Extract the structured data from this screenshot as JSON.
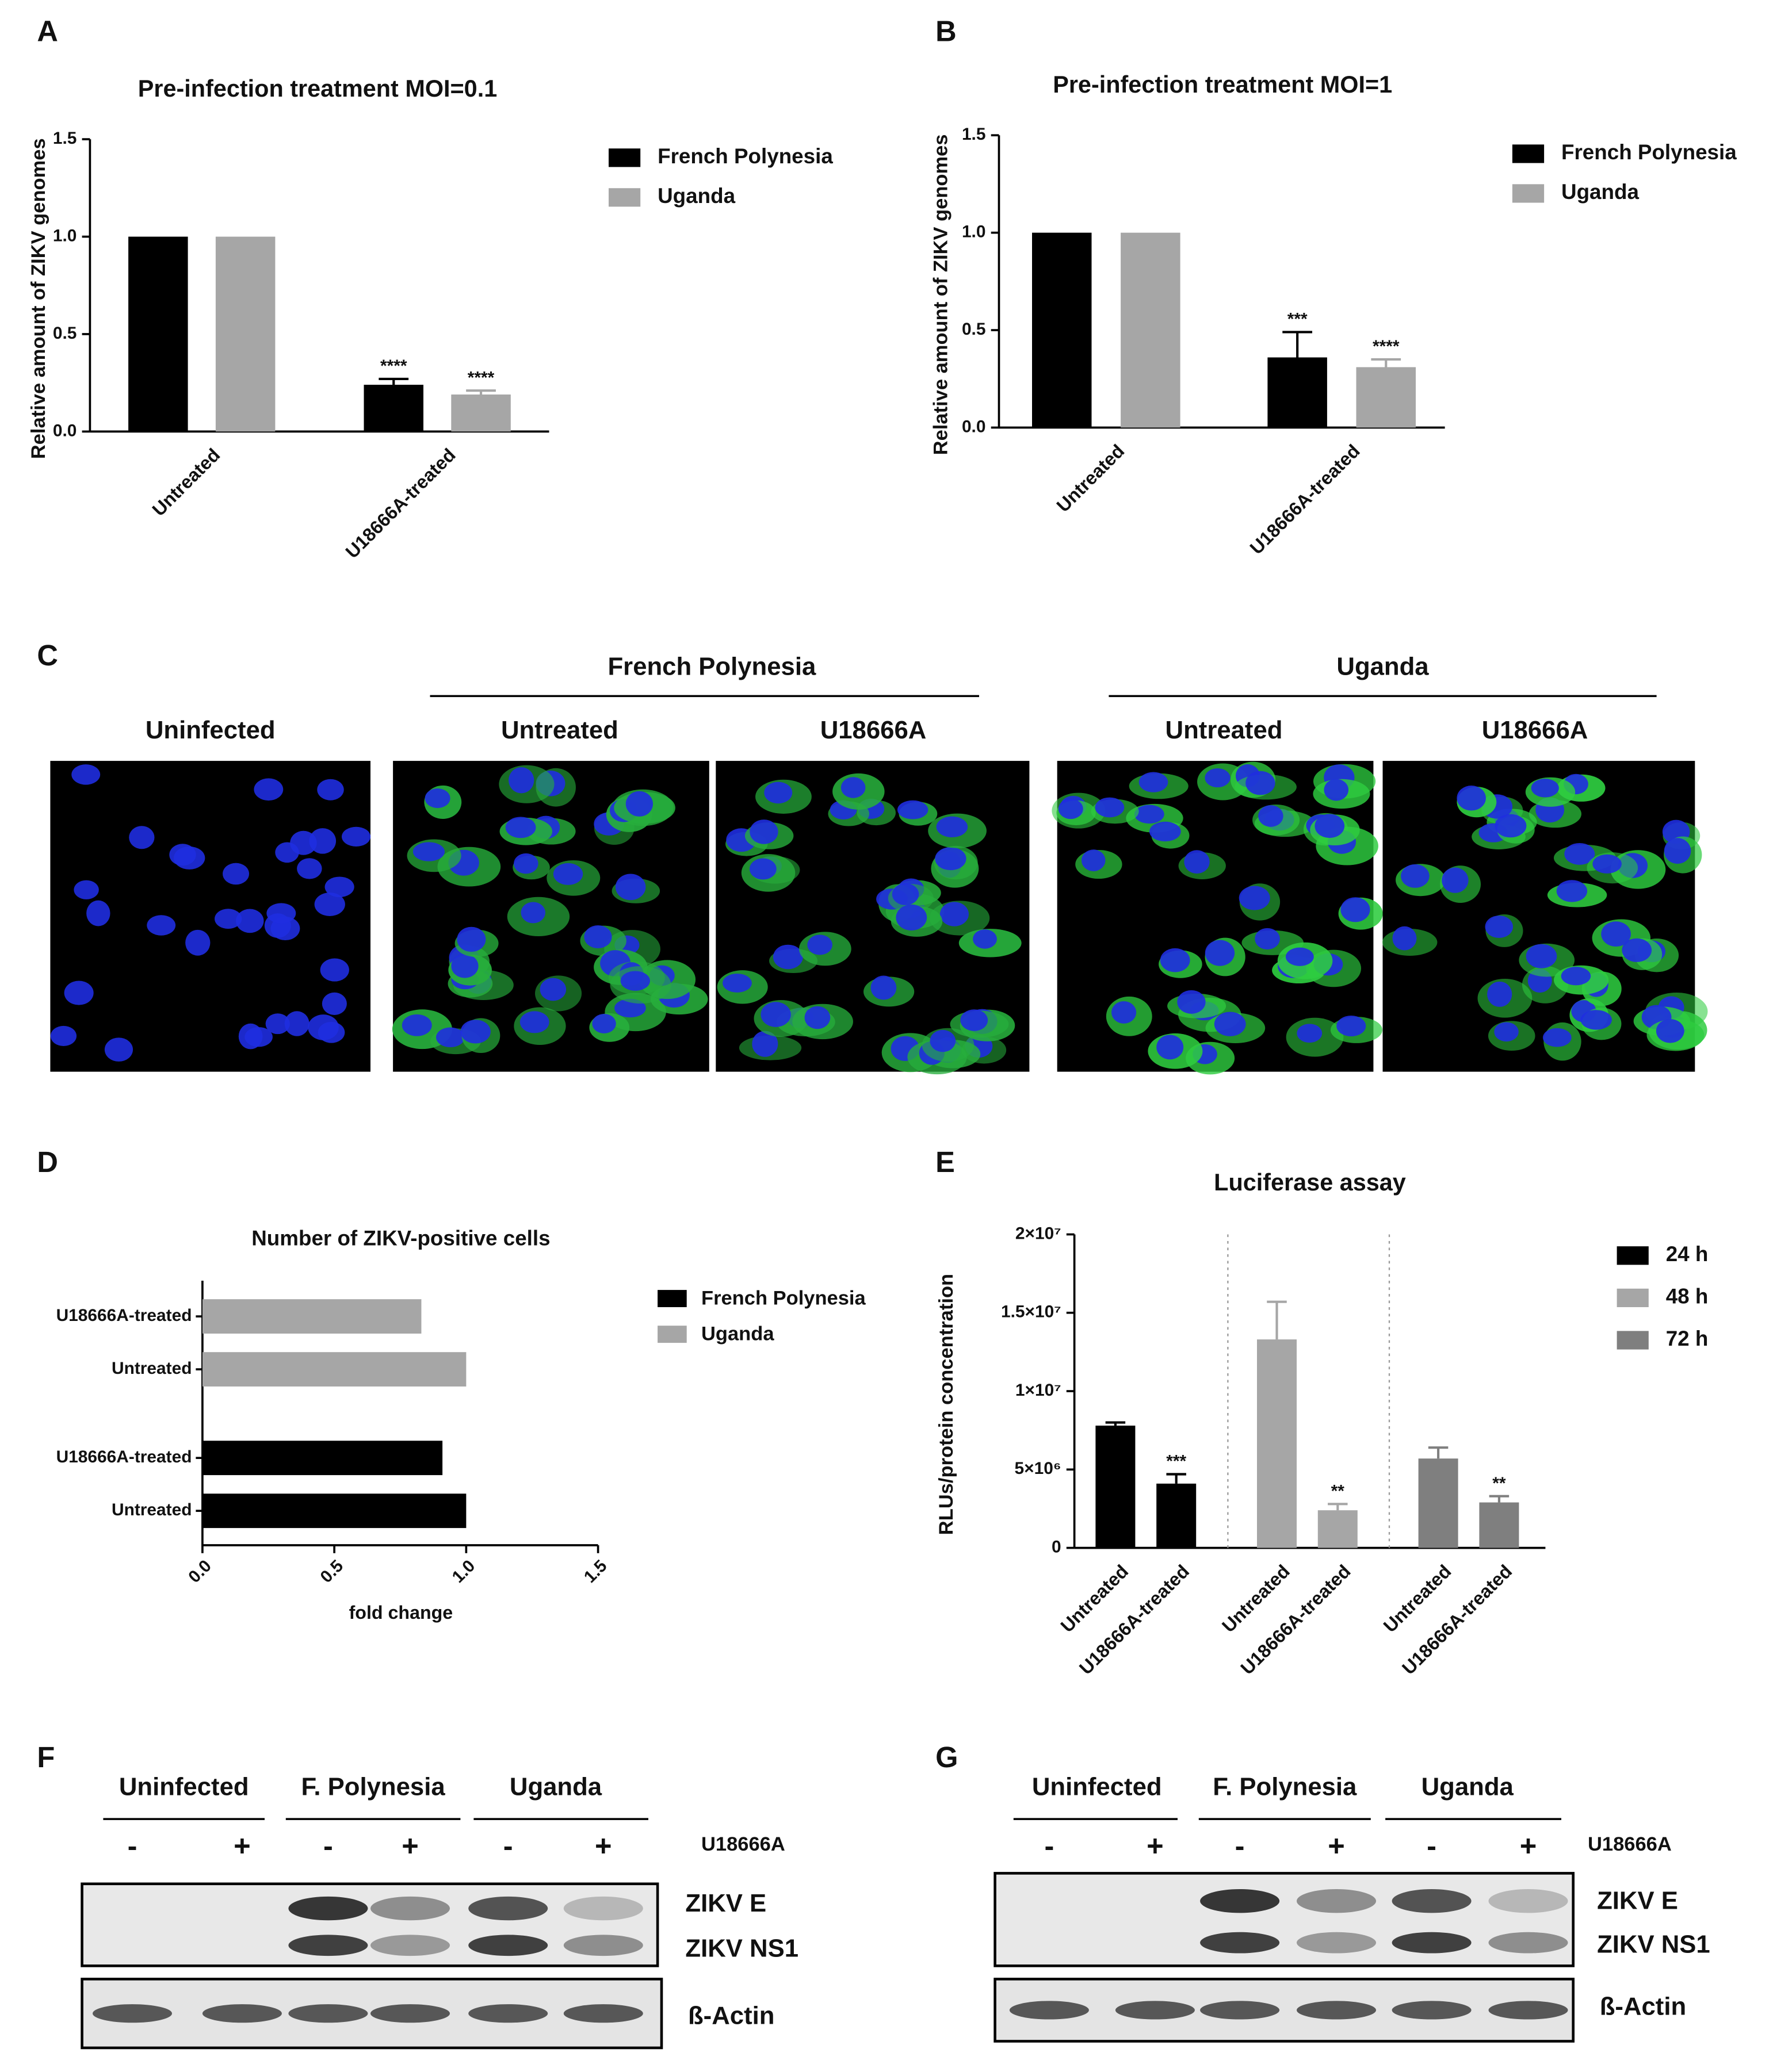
{
  "chart_data": [
    {
      "panel": "A",
      "type": "bar",
      "title": "Pre-infection treatment MOI=0.1",
      "ylabel": "Relative amount of ZIKV genomes",
      "categories": [
        "Untreated",
        "U18666A-treated"
      ],
      "series": [
        {
          "name": "French Polynesia",
          "color": "#000000",
          "values": [
            1,
            0.24
          ],
          "errors": [
            null,
            0.03
          ],
          "significance": [
            null,
            "****"
          ]
        },
        {
          "name": "Uganda",
          "color": "#a6a6a6",
          "values": [
            1,
            0.19
          ],
          "errors": [
            null,
            0.02
          ],
          "significance": [
            null,
            "****"
          ]
        }
      ],
      "ylim": [
        0,
        1.5
      ],
      "yticks": [
        {
          "value": 0,
          "label": "0.0"
        },
        0.5,
        {
          "value": 1,
          "label": "1.0"
        },
        1.5
      ]
    },
    {
      "panel": "B",
      "type": "bar",
      "title": "Pre-infection treatment MOI=1",
      "ylabel": "Relative amount of ZIKV genomes",
      "categories": [
        "Untreated",
        "U18666A-treated"
      ],
      "series": [
        {
          "name": "French Polynesia",
          "color": "#000000",
          "values": [
            1,
            0.36
          ],
          "errors": [
            null,
            0.13
          ],
          "significance": [
            null,
            "***"
          ]
        },
        {
          "name": "Uganda",
          "color": "#a6a6a6",
          "values": [
            1,
            0.31
          ],
          "errors": [
            null,
            0.04
          ],
          "significance": [
            null,
            "****"
          ]
        }
      ],
      "ylim": [
        0,
        1.5
      ],
      "yticks": [
        {
          "value": 0,
          "label": "0.0"
        },
        0.5,
        {
          "value": 1,
          "label": "1.0"
        },
        1.5
      ]
    },
    {
      "panel": "D",
      "type": "barh",
      "title": "Number of ZIKV-positive cells",
      "xlabel": "fold change",
      "categories": [
        "Untreated",
        "U18666A-treated"
      ],
      "series": [
        {
          "name": "French Polynesia",
          "color": "#000000",
          "values": [
            1,
            0.91
          ]
        },
        {
          "name": "Uganda",
          "color": "#a6a6a6",
          "values": [
            1,
            0.83
          ]
        }
      ],
      "xlim": [
        0,
        1.5
      ],
      "xticks": [
        {
          "value": 0,
          "label": "0.0"
        },
        0.5,
        {
          "value": 1,
          "label": "1.0"
        },
        1.5
      ]
    },
    {
      "panel": "E",
      "type": "bar",
      "title": "Luciferase assay",
      "ylabel": "RLUs/protein concentration",
      "categories": [
        "Untreated",
        "U18666A-treated"
      ],
      "series": [
        {
          "name": "24 h",
          "color": "#000000",
          "values": [
            7800000,
            4100000
          ],
          "errors": [
            200000,
            600000
          ],
          "significance": [
            null,
            "***"
          ]
        },
        {
          "name": "48 h",
          "color": "#a6a6a6",
          "values": [
            13300000,
            2400000
          ],
          "errors": [
            2400000,
            400000
          ],
          "significance": [
            null,
            "**"
          ]
        },
        {
          "name": "72 h",
          "color": "#7f7f7f",
          "values": [
            5700000,
            2900000
          ],
          "errors": [
            700000,
            400000
          ],
          "significance": [
            null,
            "**"
          ]
        }
      ],
      "ylim": [
        0,
        20000000
      ],
      "yticks": [
        0,
        {
          "value": 5000000,
          "label": "5×10⁶"
        },
        {
          "value": 10000000,
          "label": "1×10⁷"
        },
        {
          "value": 15000000,
          "label": "1.5×10⁷"
        },
        {
          "value": 20000000,
          "label": "2×10⁷"
        }
      ]
    }
  ],
  "panel_c": {
    "panel": "C",
    "groups": [
      "French Polynesia",
      "Uganda"
    ],
    "images": [
      "Uninfected",
      "Untreated",
      "U18666A",
      "Untreated",
      "U18666A"
    ]
  },
  "blots": [
    {
      "panel": "F",
      "groups": [
        "Uninfected",
        "F. Polynesia",
        "Uganda"
      ],
      "lanes": [
        "-",
        "+",
        "-",
        "+",
        "-",
        "+"
      ],
      "treatment": "U18666A",
      "bands": [
        "ZIKV E",
        "ZIKV NS1"
      ],
      "loading": "ß-Actin"
    },
    {
      "panel": "G",
      "groups": [
        "Uninfected",
        "F. Polynesia",
        "Uganda"
      ],
      "lanes": [
        "-",
        "+",
        "-",
        "+",
        "-",
        "+"
      ],
      "treatment": "U18666A",
      "bands": [
        "ZIKV E",
        "ZIKV NS1"
      ],
      "loading": "ß-Actin"
    }
  ]
}
